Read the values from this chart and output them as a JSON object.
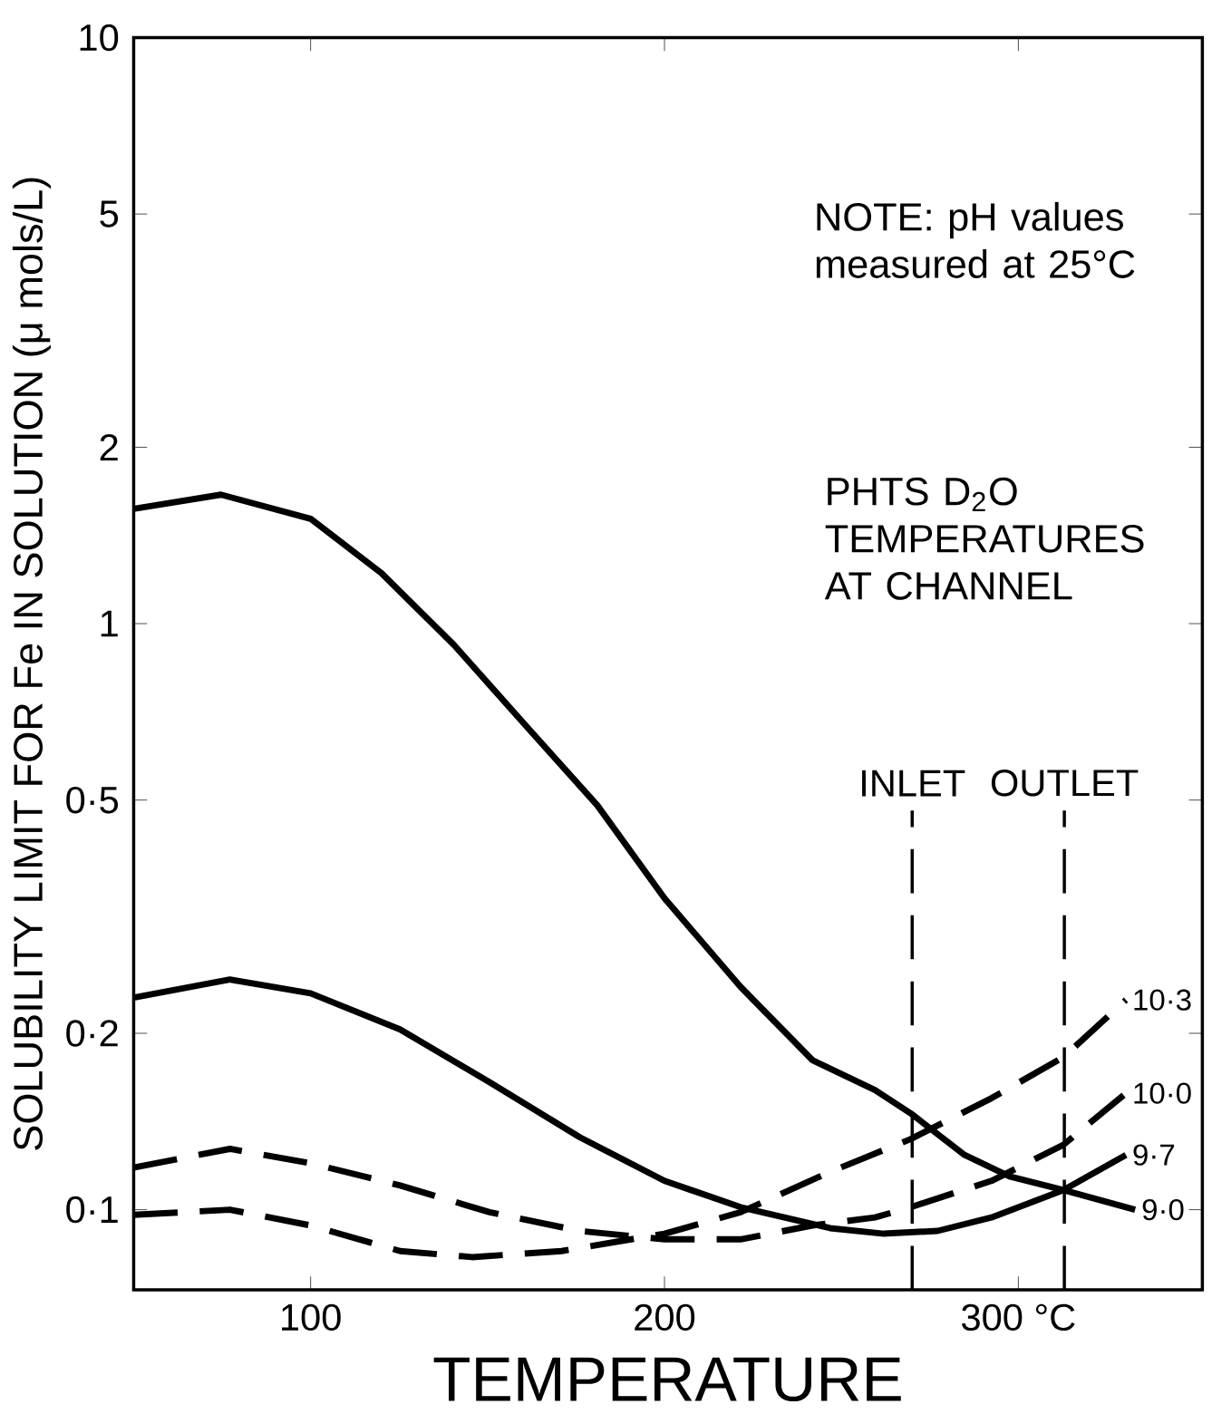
{
  "chart_data": {
    "type": "line",
    "xlabel": "TEMPERATURE",
    "ylabel": "SOLUBILITY LIMIT FOR Fe IN SOLUTION (μ mols/L)",
    "log": "y",
    "grid": false,
    "marker": "none",
    "xlim": [
      50,
      352
    ],
    "ylim": [
      0.073,
      10
    ],
    "xticks": [
      100,
      200,
      {
        "value": 300,
        "label": "300 °C"
      }
    ],
    "yticks": [
      {
        "value": 0.1,
        "label": "0·1"
      },
      {
        "value": 0.2,
        "label": "0·2"
      },
      {
        "value": 0.5,
        "label": "0·5"
      },
      1,
      2,
      5,
      10
    ],
    "series": [
      {
        "name": "9·0",
        "color": "#000000",
        "line_style": "solid",
        "x": [
          50,
          74.7,
          100,
          120,
          140.5,
          160.8,
          181,
          200,
          221.5,
          241.8,
          259.5,
          269.6,
          284.8,
          297.5,
          312.7,
          333
        ],
        "values": [
          1.57,
          1.66,
          1.51,
          1.22,
          0.92,
          0.67,
          0.49,
          0.34,
          0.24,
          0.18,
          0.16,
          0.146,
          0.124,
          0.114,
          0.108,
          0.1
        ]
      },
      {
        "name": "9·7",
        "color": "#000000",
        "line_style": "solid",
        "x": [
          50,
          77.2,
          100,
          125.3,
          150.6,
          176,
          200,
          221.5,
          246.8,
          262,
          277.2,
          292.4,
          312.7,
          330.4
        ],
        "values": [
          0.23,
          0.247,
          0.234,
          0.203,
          0.165,
          0.133,
          0.112,
          0.101,
          0.093,
          0.091,
          0.092,
          0.097,
          0.108,
          0.124
        ]
      },
      {
        "name": "10·0",
        "color": "#000000",
        "line_style": "dashed",
        "x": [
          50,
          77.2,
          100,
          125.3,
          150.6,
          176,
          200,
          221.5,
          241.8,
          259.5,
          269.6,
          292.4,
          312.7,
          330.4
        ],
        "values": [
          0.118,
          0.127,
          0.12,
          0.11,
          0.099,
          0.092,
          0.089,
          0.089,
          0.094,
          0.097,
          0.101,
          0.112,
          0.129,
          0.158
        ]
      },
      {
        "name": "10·3",
        "color": "#000000",
        "line_style": "dashed",
        "x": [
          50,
          77.2,
          100,
          125.3,
          145.6,
          170.9,
          200,
          221.5,
          246.8,
          269.6,
          292.4,
          312.7,
          330.4
        ],
        "values": [
          0.098,
          0.1,
          0.094,
          0.085,
          0.083,
          0.085,
          0.091,
          0.099,
          0.116,
          0.132,
          0.155,
          0.182,
          0.228
        ]
      }
    ],
    "ref_lines": [
      {
        "axis": "x",
        "value": 270,
        "label": "INLET",
        "line_style": "dashed"
      },
      {
        "axis": "x",
        "value": 313,
        "label": "OUTLET",
        "line_style": "dashed"
      }
    ],
    "annotations": [
      "NOTE: pH values measured at 25°C",
      "PHTS D$_{2}$O TEMPERATURES AT CHANNEL"
    ]
  }
}
